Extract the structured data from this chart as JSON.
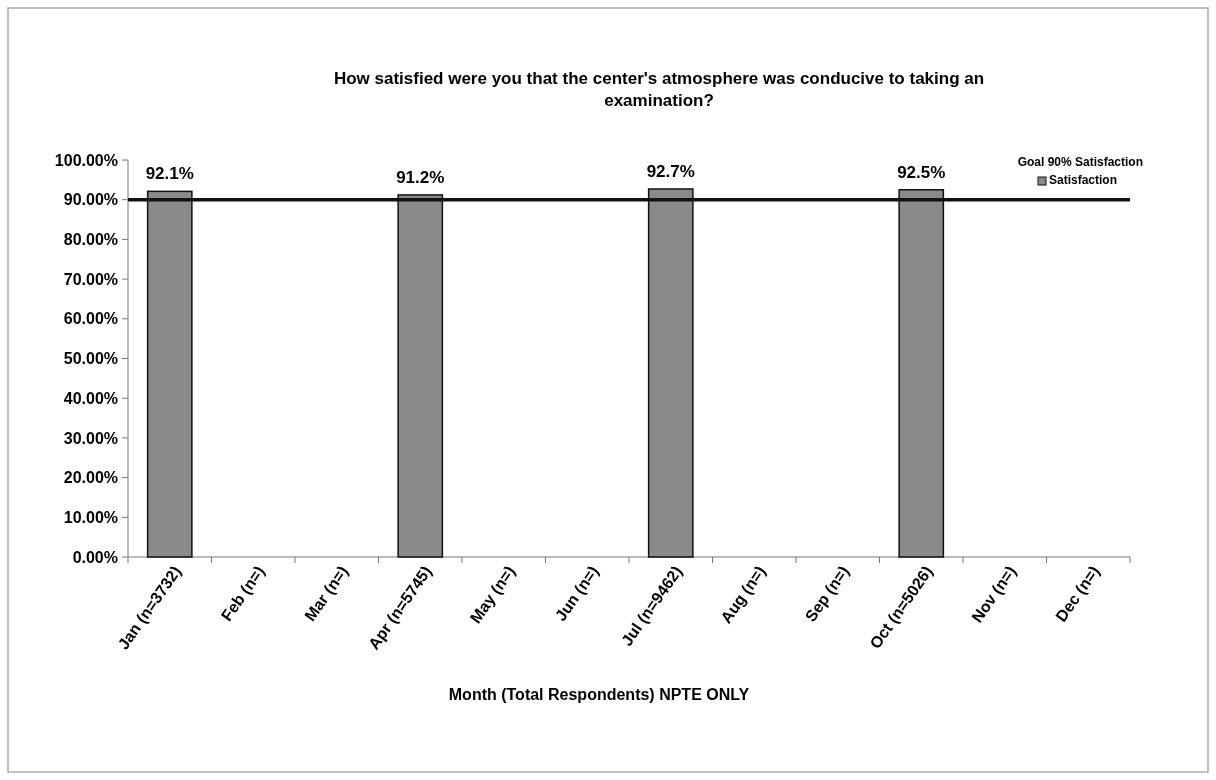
{
  "chart_data": {
    "type": "bar",
    "title": "How satisfied were you that the center's atmosphere was conducive to taking an examination?",
    "xlabel": "Month (Total Respondents) NPTE ONLY",
    "categories": [
      "Jan (n=3732)",
      "Feb (n=)",
      "Mar (n=)",
      "Apr (n=5745)",
      "May (n=)",
      "Jun (n=)",
      "Jul (n=9462)",
      "Aug (n=)",
      "Sep (n=)",
      "Oct (n=5026)",
      "Nov (n=)",
      "Dec (n=)"
    ],
    "series": [
      {
        "name": "Satisfaction",
        "color": "#8a8a8a",
        "values": [
          92.1,
          null,
          null,
          91.2,
          null,
          null,
          92.7,
          null,
          null,
          92.5,
          null,
          null
        ],
        "value_labels": [
          "92.1%",
          null,
          null,
          "91.2%",
          null,
          null,
          "92.7%",
          null,
          null,
          "92.5%",
          null,
          null
        ]
      }
    ],
    "ylim": [
      0,
      100
    ],
    "yticks": [
      {
        "value": 0,
        "label": "0.00%"
      },
      {
        "value": 10,
        "label": "10.00%"
      },
      {
        "value": 20,
        "label": "20.00%"
      },
      {
        "value": 30,
        "label": "30.00%"
      },
      {
        "value": 40,
        "label": "40.00%"
      },
      {
        "value": 50,
        "label": "50.00%"
      },
      {
        "value": 60,
        "label": "60.00%"
      },
      {
        "value": 70,
        "label": "70.00%"
      },
      {
        "value": 80,
        "label": "80.00%"
      },
      {
        "value": 90,
        "label": "90.00%"
      },
      {
        "value": 100,
        "label": "100.00%"
      }
    ],
    "ref_lines": [
      {
        "axis": "y",
        "value": 90,
        "label": "Goal 90% Satisfaction",
        "color": "#111111"
      }
    ],
    "legend": "top right",
    "grid": false
  }
}
